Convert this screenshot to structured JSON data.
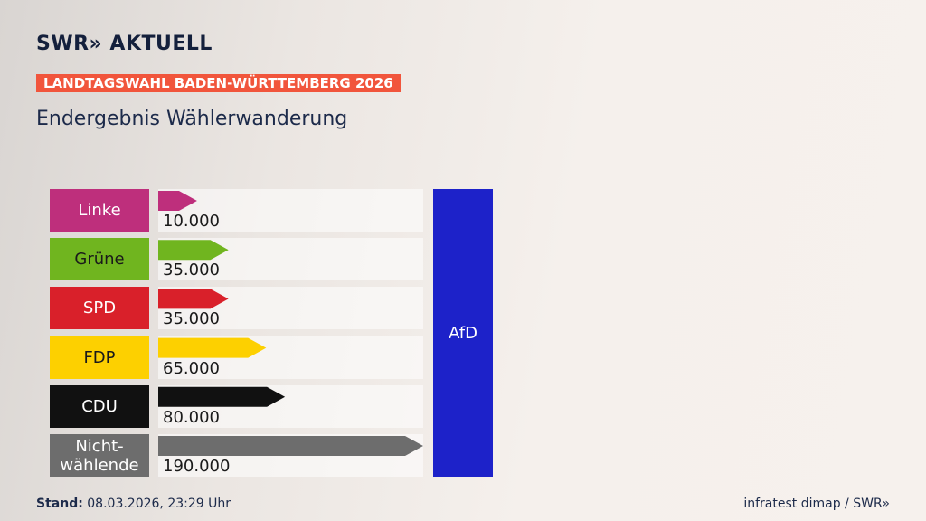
{
  "chart_data": {
    "type": "bar",
    "orientation": "horizontal",
    "brand": "SWR» AKTUELL",
    "kicker": "LANDTAGSWAHL BADEN-WÜRTTEMBERG 2026",
    "title": "Endergebnis Wählerwanderung",
    "categories": [
      "Linke",
      "Grüne",
      "SPD",
      "FDP",
      "CDU",
      "Nicht-wählende"
    ],
    "values": [
      10000,
      35000,
      35000,
      65000,
      80000,
      190000
    ],
    "value_labels": [
      "10.000",
      "35.000",
      "35.000",
      "65.000",
      "80.000",
      "190.000"
    ],
    "colors": [
      "#be2f7c",
      "#70b51f",
      "#d9202a",
      "#fdd000",
      "#111111",
      "#6d6d6d"
    ],
    "label_text_colors": [
      "#ffffff",
      "#1a1a1a",
      "#ffffff",
      "#1a1a1a",
      "#ffffff",
      "#ffffff"
    ],
    "target": "AfD",
    "target_color": "#1d22c9",
    "source_label": "Stand:",
    "source_date": "08.03.2026, 23:29 Uhr",
    "credit": "infratest dimap / SWR»"
  }
}
